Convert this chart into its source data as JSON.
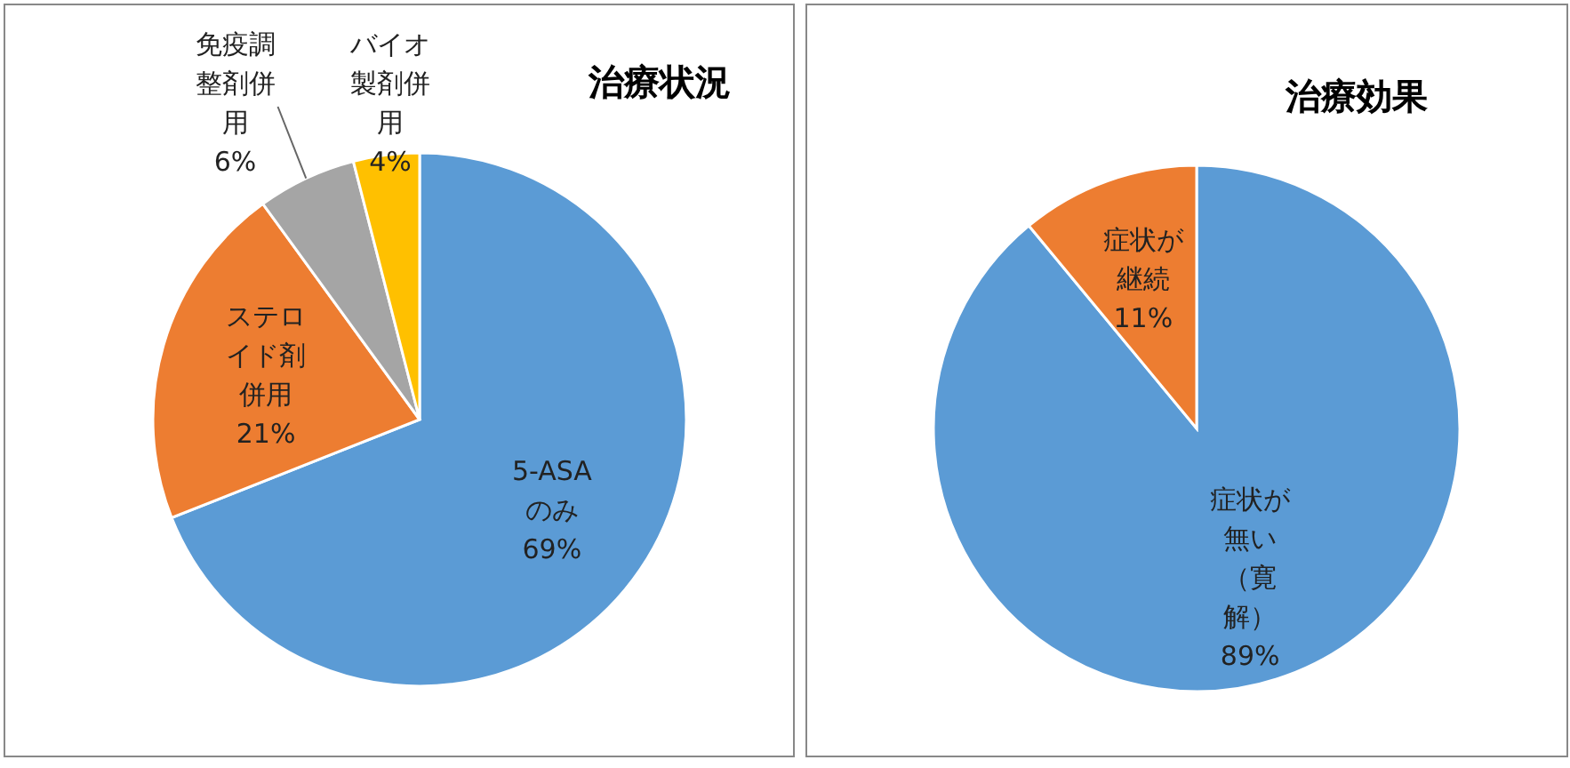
{
  "chart_data": [
    {
      "type": "pie",
      "title": "治療状況",
      "categories": [
        "5-ASAのみ",
        "ステロイド剤併用",
        "免疫調整剤併用",
        "バイオ製剤併用"
      ],
      "values": [
        69,
        21,
        6,
        4
      ],
      "colors": [
        "#5b9bd5",
        "#ed7d31",
        "#a5a5a5",
        "#ffc000"
      ],
      "value_labels": [
        "69%",
        "21%",
        "6%",
        "4%"
      ]
    },
    {
      "type": "pie",
      "title": "治療効果",
      "categories": [
        "症状が無い（寛解）",
        "症状が継続"
      ],
      "values": [
        89,
        11
      ],
      "colors": [
        "#5b9bd5",
        "#ed7d31"
      ],
      "value_labels": [
        "89%",
        "11%"
      ]
    }
  ]
}
